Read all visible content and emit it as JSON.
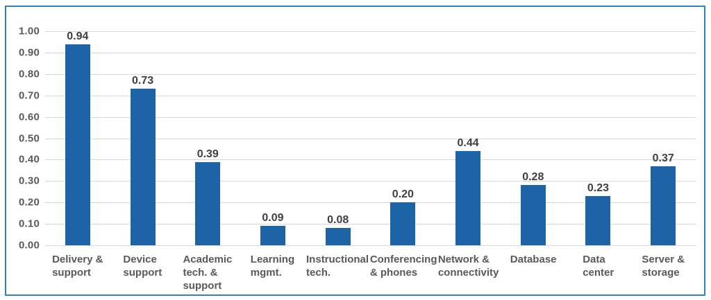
{
  "colors": {
    "bar": "#1d64a6",
    "frame_border": "#2f80c4",
    "gridline": "#d7d7d7",
    "axis_text": "#595959",
    "value_text": "#3f3f3f",
    "background": "#ffffff"
  },
  "chart_data": {
    "type": "bar",
    "title": "",
    "xlabel": "",
    "ylabel": "",
    "ylim": [
      0,
      1.0
    ],
    "y_tick_step": 0.1,
    "grid": true,
    "legend": false,
    "y_ticks": [
      "1.00",
      "0.90",
      "0.80",
      "0.70",
      "0.60",
      "0.50",
      "0.40",
      "0.30",
      "0.20",
      "0.10",
      "0.00"
    ],
    "categories": [
      "Delivery &\nsupport",
      "Device\nsupport",
      "Academic\ntech. &\nsupport",
      "Learning\nmgmt.",
      "Instructional\ntech.",
      "Conferencing\n& phones",
      "Network &\nconnectivity",
      "Database",
      "Data\ncenter",
      "Server &\nstorage"
    ],
    "values": [
      0.94,
      0.73,
      0.39,
      0.09,
      0.08,
      0.2,
      0.44,
      0.28,
      0.23,
      0.37
    ],
    "value_labels": [
      "0.94",
      "0.73",
      "0.39",
      "0.09",
      "0.08",
      "0.20",
      "0.44",
      "0.28",
      "0.23",
      "0.37"
    ]
  }
}
